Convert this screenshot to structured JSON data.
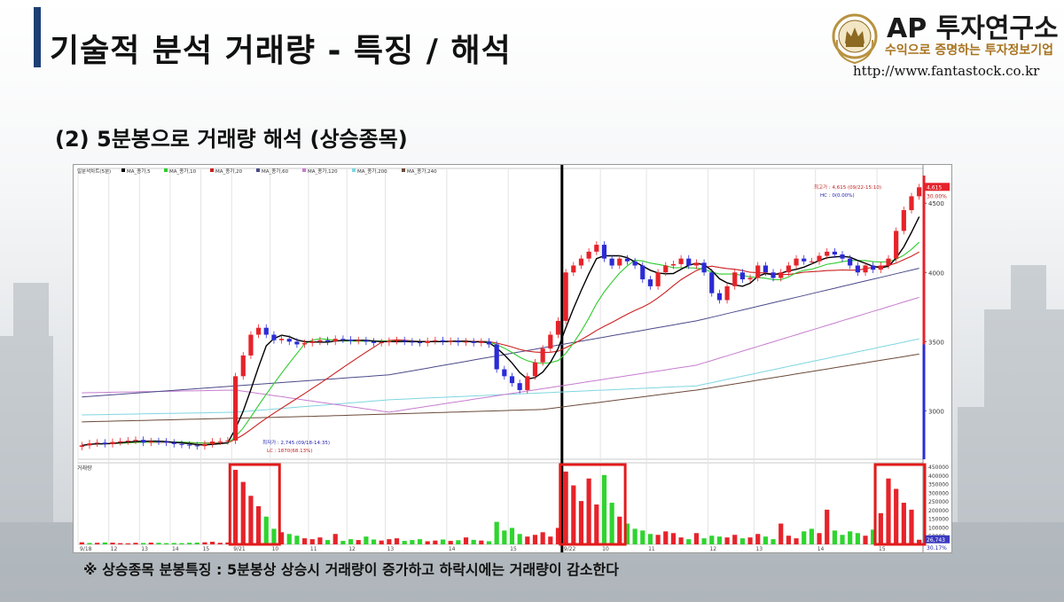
{
  "header": {
    "title": "기술적 분석 거래량 - 특징 / 해석",
    "logo_name": "AP 투자연구소",
    "logo_tagline": "수익으로 증명하는 투자정보기업",
    "logo_url": "http://www.fantastock.co.kr"
  },
  "subtitle": "(2) 5분봉으로 거래량 해석 (상승종목)",
  "note": "※ 상승종목 분봉특징 : 5분봉상 상승시 거래량이 증가하고 하락시에는 거래량이 감소한다",
  "colors": {
    "up": "#e6232a",
    "down": "#2b2bd6",
    "vol_up": "#e6232a",
    "vol_down": "#2fd42f",
    "highlight": "#e21b1b",
    "title_bar": "#1d3f74",
    "tagline": "#a8731e"
  },
  "chart_data": [
    {
      "type": "candlestick",
      "legend": [
        "일분석차트(5분)",
        "MA_종가,5",
        "MA_종가,10",
        "MA_종가,20",
        "MA_종가,60",
        "MA_종가,120",
        "MA_종가,200",
        "MA_종가,240"
      ],
      "series_colors": {
        "MA_종가,5": "#000000",
        "MA_종가,10": "#2ecc2e",
        "MA_종가,20": "#cc1f1f",
        "MA_종가,60": "#4a4a8a",
        "MA_종가,120": "#c77ccf",
        "MA_종가,200": "#7fd6e0",
        "MA_종가,240": "#6b4a3a"
      },
      "x_ticks": [
        "9/18",
        "12",
        "13",
        "14",
        "15",
        "9/21",
        "10",
        "11",
        "12",
        "13",
        "14",
        "15",
        "9/22",
        "10",
        "11",
        "12",
        "13",
        "14",
        "15"
      ],
      "y_ticks": [
        4500,
        4000,
        3500,
        3000
      ],
      "ylim": [
        2650,
        4700
      ],
      "annotations": {
        "high_label": "최고가 : 4,615 (09/22-15:10)",
        "high_sub": "HC : 0(0.00%)",
        "low_label": "최저가 : 2,745 (09/18-14:35)",
        "low_sub": "LC : 1870(68.13%)",
        "current_price": "4,615",
        "current_pct": "30.00%"
      },
      "close": [
        2750,
        2765,
        2770,
        2760,
        2775,
        2780,
        2785,
        2790,
        2770,
        2780,
        2778,
        2770,
        2760,
        2755,
        2750,
        2745,
        2760,
        2778,
        2780,
        2785,
        3250,
        3400,
        3550,
        3600,
        3550,
        3510,
        3520,
        3500,
        3480,
        3490,
        3500,
        3510,
        3500,
        3520,
        3515,
        3505,
        3510,
        3500,
        3490,
        3495,
        3505,
        3510,
        3500,
        3495,
        3490,
        3505,
        3510,
        3500,
        3505,
        3495,
        3500,
        3490,
        3500,
        3480,
        3300,
        3250,
        3200,
        3150,
        3250,
        3350,
        3450,
        3550,
        3650,
        4000,
        4050,
        4100,
        4150,
        4200,
        4100,
        4050,
        4100,
        4080,
        4050,
        3950,
        3900,
        4000,
        4050,
        4060,
        4100,
        4050,
        4070,
        4000,
        3850,
        3800,
        3900,
        4000,
        3950,
        3960,
        4050,
        4000,
        3960,
        4000,
        4050,
        4100,
        4080,
        4080,
        4120,
        4150,
        4130,
        4100,
        4050,
        4000,
        4050,
        4020,
        4050,
        4100,
        4300,
        4450,
        4550,
        4615
      ],
      "ma_values": {
        "MA_종가,60": {
          "x_index": [
            0,
            40,
            80,
            109
          ],
          "values": [
            3100,
            3260,
            3650,
            4030
          ]
        },
        "MA_종가,120": {
          "x_index": [
            0,
            20,
            40,
            80,
            109
          ],
          "values": [
            3130,
            3150,
            2990,
            3330,
            3820
          ]
        },
        "MA_종가,200": {
          "x_index": [
            0,
            20,
            40,
            80,
            109
          ],
          "values": [
            2970,
            2990,
            3080,
            3180,
            3520
          ]
        },
        "MA_종가,240": {
          "x_index": [
            0,
            30,
            60,
            80,
            109
          ],
          "values": [
            2920,
            2960,
            3010,
            3150,
            3410
          ]
        }
      }
    },
    {
      "type": "bar",
      "title": "거래량",
      "y_ticks": [
        450000,
        400000,
        350000,
        300000,
        250000,
        200000,
        150000,
        100000,
        50000
      ],
      "ylim": [
        0,
        450000
      ],
      "current_value": "26,743",
      "current_pct": "30.17%",
      "values": [
        12000,
        8000,
        9000,
        11000,
        10000,
        7000,
        6000,
        9000,
        8000,
        10000,
        9000,
        7000,
        8000,
        7000,
        9000,
        10000,
        12000,
        15000,
        9000,
        11000,
        430000,
        360000,
        280000,
        220000,
        160000,
        90000,
        70000,
        60000,
        50000,
        35000,
        30000,
        40000,
        25000,
        60000,
        20000,
        30000,
        25000,
        45000,
        28000,
        22000,
        30000,
        35000,
        20000,
        25000,
        30000,
        18000,
        22000,
        28000,
        20000,
        24000,
        40000,
        26000,
        22000,
        18000,
        130000,
        80000,
        95000,
        60000,
        45000,
        55000,
        70000,
        45000,
        95000,
        420000,
        340000,
        250000,
        380000,
        230000,
        400000,
        240000,
        160000,
        120000,
        90000,
        80000,
        60000,
        55000,
        75000,
        65000,
        40000,
        30000,
        65000,
        35000,
        50000,
        45000,
        40000,
        55000,
        35000,
        40000,
        60000,
        45000,
        30000,
        120000,
        50000,
        35000,
        75000,
        90000,
        65000,
        200000,
        80000,
        55000,
        75000,
        65000,
        50000,
        85000,
        180000,
        380000,
        320000,
        240000,
        200000,
        26743
      ],
      "up": [
        1,
        0,
        1,
        0,
        1,
        1,
        1,
        1,
        0,
        1,
        0,
        0,
        0,
        0,
        0,
        0,
        1,
        1,
        1,
        1,
        1,
        1,
        1,
        1,
        0,
        0,
        1,
        0,
        0,
        1,
        1,
        1,
        0,
        1,
        0,
        0,
        1,
        0,
        0,
        1,
        1,
        1,
        0,
        0,
        0,
        1,
        1,
        0,
        1,
        0,
        1,
        0,
        1,
        0,
        0,
        0,
        0,
        0,
        1,
        1,
        1,
        1,
        1,
        1,
        1,
        1,
        1,
        1,
        0,
        0,
        1,
        0,
        0,
        0,
        0,
        1,
        1,
        1,
        1,
        0,
        1,
        0,
        0,
        0,
        1,
        1,
        0,
        1,
        1,
        0,
        0,
        1,
        1,
        1,
        0,
        0,
        1,
        1,
        0,
        0,
        0,
        0,
        1,
        0,
        1,
        1,
        1,
        1,
        1,
        1
      ],
      "highlight_ranges": [
        [
          20,
          25
        ],
        [
          63,
          70
        ],
        [
          104,
          109
        ]
      ]
    }
  ]
}
